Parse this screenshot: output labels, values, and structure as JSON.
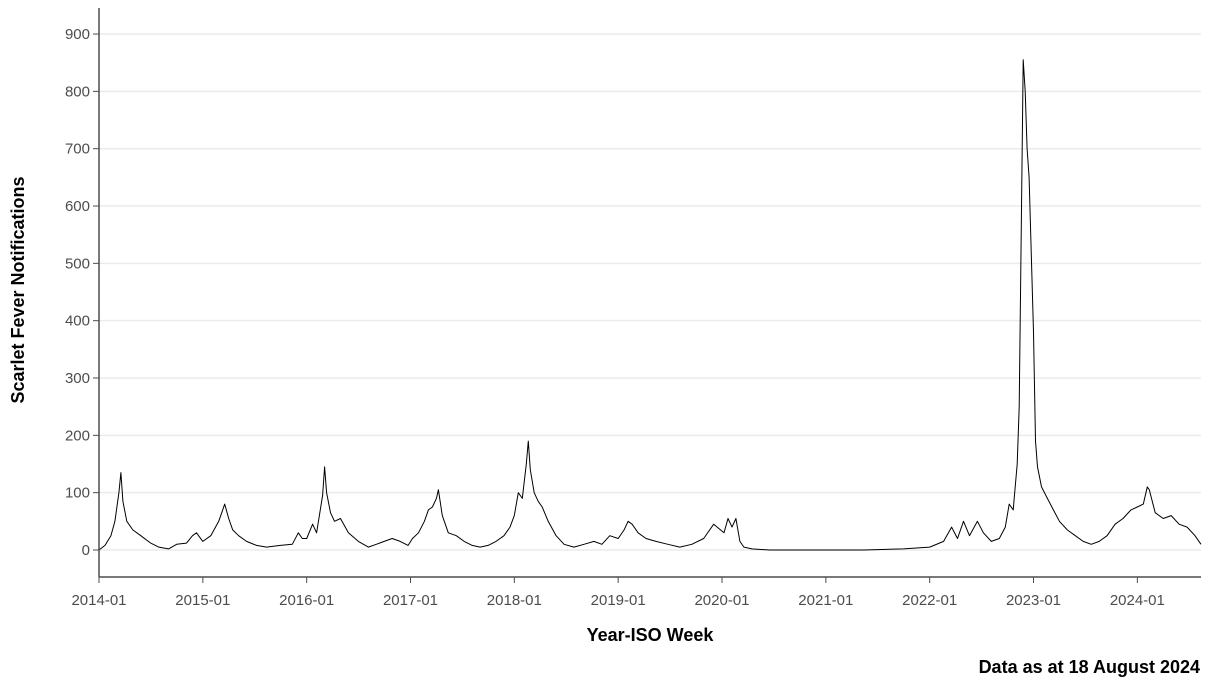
{
  "chart_data": {
    "type": "line",
    "title": "",
    "xlabel": "Year-ISO Week",
    "ylabel": "Scarlet Fever Notifications",
    "caption": "Data as at 18 August 2024",
    "x_ticks": [
      "2014-01",
      "2015-01",
      "2016-01",
      "2017-01",
      "2018-01",
      "2019-01",
      "2020-01",
      "2021-01",
      "2022-01",
      "2023-01",
      "2024-01"
    ],
    "y_ticks": [
      0,
      100,
      200,
      300,
      400,
      500,
      600,
      700,
      800,
      900
    ],
    "xlim": [
      "2014-01",
      "2024-33"
    ],
    "ylim": [
      -45,
      945
    ],
    "grid": "horizontal",
    "legend": "none",
    "series": [
      {
        "color": "#000000",
        "points": [
          [
            "2014-01",
            0
          ],
          [
            "2014-04",
            8
          ],
          [
            "2014-07",
            25
          ],
          [
            "2014-09",
            50
          ],
          [
            "2014-11",
            100
          ],
          [
            "2014-12",
            135
          ],
          [
            "2014-13",
            85
          ],
          [
            "2014-15",
            50
          ],
          [
            "2014-18",
            35
          ],
          [
            "2014-22",
            25
          ],
          [
            "2014-27",
            12
          ],
          [
            "2014-31",
            5
          ],
          [
            "2014-36",
            2
          ],
          [
            "2014-40",
            10
          ],
          [
            "2014-45",
            12
          ],
          [
            "2014-48",
            25
          ],
          [
            "2014-50",
            30
          ],
          [
            "2015-01",
            15
          ],
          [
            "2015-05",
            25
          ],
          [
            "2015-09",
            50
          ],
          [
            "2015-11",
            70
          ],
          [
            "2015-12",
            80
          ],
          [
            "2015-14",
            55
          ],
          [
            "2015-16",
            35
          ],
          [
            "2015-19",
            25
          ],
          [
            "2015-23",
            15
          ],
          [
            "2015-28",
            8
          ],
          [
            "2015-33",
            5
          ],
          [
            "2015-40",
            8
          ],
          [
            "2015-46",
            10
          ],
          [
            "2015-49",
            30
          ],
          [
            "2015-51",
            20
          ],
          [
            "2016-01",
            20
          ],
          [
            "2016-04",
            45
          ],
          [
            "2016-06",
            30
          ],
          [
            "2016-09",
            95
          ],
          [
            "2016-10",
            145
          ],
          [
            "2016-11",
            100
          ],
          [
            "2016-13",
            65
          ],
          [
            "2016-15",
            50
          ],
          [
            "2016-18",
            55
          ],
          [
            "2016-22",
            30
          ],
          [
            "2016-27",
            15
          ],
          [
            "2016-32",
            5
          ],
          [
            "2016-36",
            10
          ],
          [
            "2016-40",
            15
          ],
          [
            "2016-44",
            20
          ],
          [
            "2016-48",
            15
          ],
          [
            "2016-52",
            8
          ],
          [
            "2017-02",
            20
          ],
          [
            "2017-05",
            30
          ],
          [
            "2017-08",
            50
          ],
          [
            "2017-10",
            70
          ],
          [
            "2017-12",
            75
          ],
          [
            "2017-14",
            90
          ],
          [
            "2017-15",
            105
          ],
          [
            "2017-17",
            60
          ],
          [
            "2017-20",
            30
          ],
          [
            "2017-24",
            25
          ],
          [
            "2017-28",
            15
          ],
          [
            "2017-32",
            8
          ],
          [
            "2017-36",
            5
          ],
          [
            "2017-40",
            8
          ],
          [
            "2017-44",
            15
          ],
          [
            "2017-48",
            25
          ],
          [
            "2017-51",
            40
          ],
          [
            "2018-01",
            60
          ],
          [
            "2018-03",
            100
          ],
          [
            "2018-05",
            90
          ],
          [
            "2018-07",
            150
          ],
          [
            "2018-08",
            190
          ],
          [
            "2018-09",
            140
          ],
          [
            "2018-11",
            100
          ],
          [
            "2018-13",
            85
          ],
          [
            "2018-15",
            75
          ],
          [
            "2018-18",
            50
          ],
          [
            "2018-22",
            25
          ],
          [
            "2018-26",
            10
          ],
          [
            "2018-31",
            5
          ],
          [
            "2018-36",
            10
          ],
          [
            "2018-41",
            15
          ],
          [
            "2018-45",
            10
          ],
          [
            "2018-49",
            25
          ],
          [
            "2019-01",
            20
          ],
          [
            "2019-04",
            35
          ],
          [
            "2019-06",
            50
          ],
          [
            "2019-08",
            45
          ],
          [
            "2019-11",
            30
          ],
          [
            "2019-15",
            20
          ],
          [
            "2019-20",
            15
          ],
          [
            "2019-26",
            10
          ],
          [
            "2019-32",
            5
          ],
          [
            "2019-38",
            10
          ],
          [
            "2019-44",
            20
          ],
          [
            "2019-49",
            45
          ],
          [
            "2020-02",
            30
          ],
          [
            "2020-04",
            55
          ],
          [
            "2020-06",
            40
          ],
          [
            "2020-08",
            55
          ],
          [
            "2020-10",
            15
          ],
          [
            "2020-12",
            5
          ],
          [
            "2020-16",
            2
          ],
          [
            "2020-25",
            0
          ],
          [
            "2020-40",
            0
          ],
          [
            "2021-01",
            0
          ],
          [
            "2021-20",
            0
          ],
          [
            "2021-40",
            2
          ],
          [
            "2022-01",
            5
          ],
          [
            "2022-08",
            15
          ],
          [
            "2022-12",
            40
          ],
          [
            "2022-15",
            20
          ],
          [
            "2022-18",
            50
          ],
          [
            "2022-21",
            25
          ],
          [
            "2022-25",
            50
          ],
          [
            "2022-28",
            30
          ],
          [
            "2022-32",
            15
          ],
          [
            "2022-36",
            20
          ],
          [
            "2022-39",
            40
          ],
          [
            "2022-41",
            80
          ],
          [
            "2022-43",
            70
          ],
          [
            "2022-45",
            150
          ],
          [
            "2022-46",
            250
          ],
          [
            "2022-47",
            550
          ],
          [
            "2022-48",
            855
          ],
          [
            "2022-49",
            800
          ],
          [
            "2022-50",
            700
          ],
          [
            "2022-51",
            650
          ],
          [
            "2023-01",
            380
          ],
          [
            "2023-02",
            190
          ],
          [
            "2023-03",
            145
          ],
          [
            "2023-05",
            110
          ],
          [
            "2023-08",
            90
          ],
          [
            "2023-11",
            70
          ],
          [
            "2023-14",
            50
          ],
          [
            "2023-18",
            35
          ],
          [
            "2023-22",
            25
          ],
          [
            "2023-26",
            15
          ],
          [
            "2023-30",
            10
          ],
          [
            "2023-34",
            15
          ],
          [
            "2023-38",
            25
          ],
          [
            "2023-42",
            45
          ],
          [
            "2023-46",
            55
          ],
          [
            "2023-50",
            70
          ],
          [
            "2024-01",
            75
          ],
          [
            "2024-04",
            80
          ],
          [
            "2024-06",
            110
          ],
          [
            "2024-07",
            105
          ],
          [
            "2024-10",
            65
          ],
          [
            "2024-14",
            55
          ],
          [
            "2024-18",
            60
          ],
          [
            "2024-22",
            45
          ],
          [
            "2024-26",
            40
          ],
          [
            "2024-30",
            25
          ],
          [
            "2024-33",
            10
          ]
        ]
      }
    ]
  }
}
